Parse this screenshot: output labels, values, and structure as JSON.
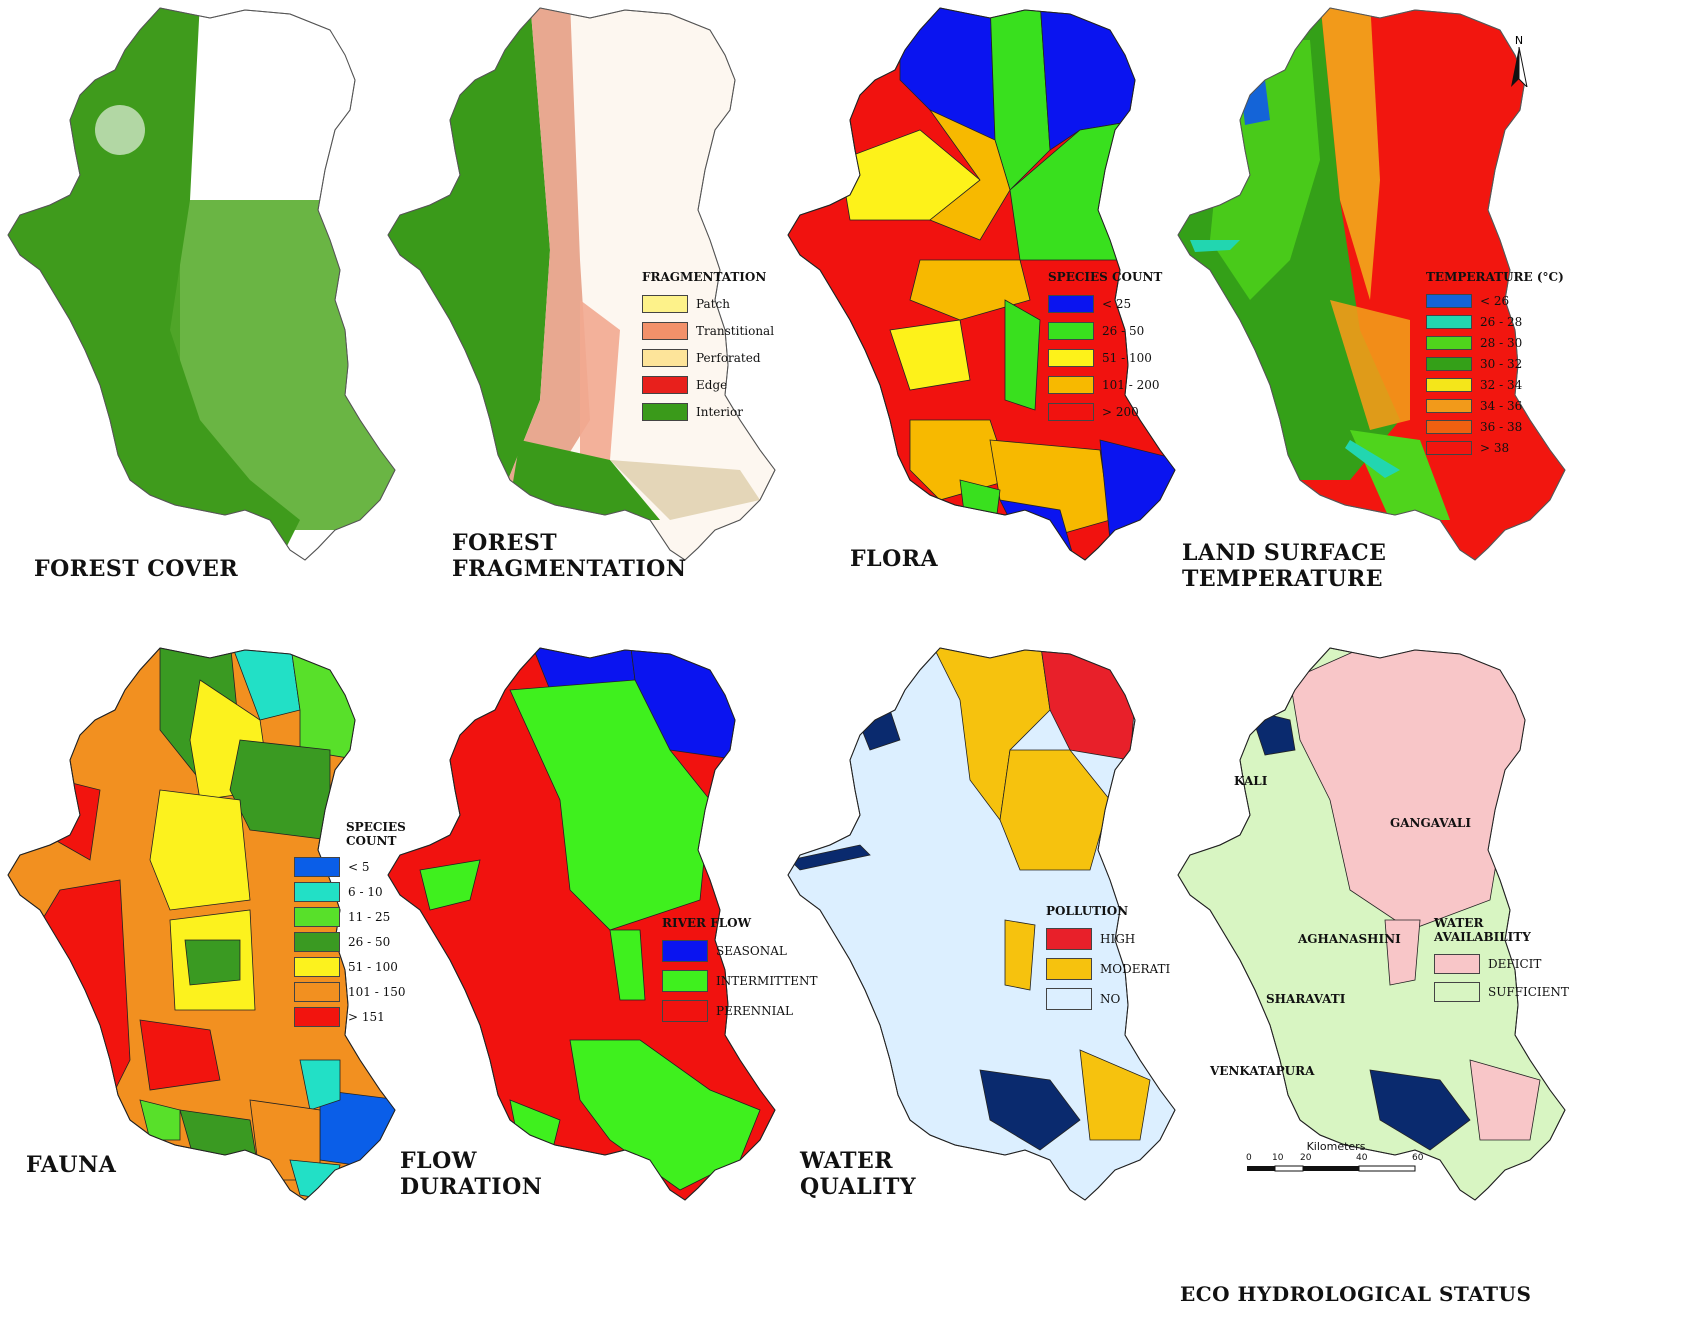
{
  "panels": {
    "forest_cover": {
      "title": "FOREST COVER",
      "colors": {
        "base": "#ffffff",
        "forest": "#3f9b1c"
      }
    },
    "forest_fragmentation": {
      "title": "FOREST\nFRAGMENTATION",
      "legend": {
        "title": "FRAGMENTATION",
        "items": [
          {
            "label": "Patch",
            "color": "#fdf28a"
          },
          {
            "label": "Transtitional",
            "color": "#f2916a"
          },
          {
            "label": "Perforated",
            "color": "#fde49a"
          },
          {
            "label": "Edge",
            "color": "#e8201c"
          },
          {
            "label": "Interior",
            "color": "#3a9a1a"
          }
        ]
      }
    },
    "flora": {
      "title": "FLORA",
      "legend": {
        "title": "SPECIES COUNT",
        "items": [
          {
            "label": "< 25",
            "color": "#0a14f0"
          },
          {
            "label": "26 - 50",
            "color": "#39e01e"
          },
          {
            "label": "51 - 100",
            "color": "#fdf21a"
          },
          {
            "label": "101 - 200",
            "color": "#f7b900"
          },
          {
            "label": "> 200",
            "color": "#f1120f"
          }
        ]
      }
    },
    "land_surface_temperature": {
      "title": "LAND SURFACE\nTEMPERATURE",
      "north": "N",
      "legend": {
        "title": "TEMPERATURE (°C)",
        "items": [
          {
            "label": "< 26",
            "color": "#1464d8"
          },
          {
            "label": "26 - 28",
            "color": "#22d6b0"
          },
          {
            "label": "28 - 30",
            "color": "#4fd41c"
          },
          {
            "label": "30 - 32",
            "color": "#34a018"
          },
          {
            "label": "32 - 34",
            "color": "#f4e61a"
          },
          {
            "label": "34 - 36",
            "color": "#f29a1a"
          },
          {
            "label": "36 - 38",
            "color": "#f06010"
          },
          {
            "label": "> 38",
            "color": "#f2160f"
          }
        ]
      }
    },
    "fauna": {
      "title": "FAUNA",
      "legend": {
        "title": "SPECIES\nCOUNT",
        "items": [
          {
            "label": "< 5",
            "color": "#0a5ee8"
          },
          {
            "label": "6 - 10",
            "color": "#22e0c6"
          },
          {
            "label": "11 - 25",
            "color": "#58e02a"
          },
          {
            "label": "26 - 50",
            "color": "#3a9a22"
          },
          {
            "label": "51 - 100",
            "color": "#fcf21e"
          },
          {
            "label": "101 - 150",
            "color": "#f29020"
          },
          {
            "label": "> 151",
            "color": "#f2140e"
          }
        ]
      }
    },
    "flow_duration": {
      "title": "FLOW\nDURATION",
      "legend": {
        "title": "RIVER FLOW",
        "items": [
          {
            "label": "SEASONAL",
            "color": "#0a14f0"
          },
          {
            "label": "INTERMITTENT",
            "color": "#3ff01e"
          },
          {
            "label": "PERENNIAL",
            "color": "#f1120f"
          }
        ]
      }
    },
    "water_quality": {
      "title": "WATER\nQUALITY",
      "legend": {
        "title": "POLLUTION",
        "items": [
          {
            "label": "HIGH",
            "color": "#e8202a"
          },
          {
            "label": "MODERATI",
            "color": "#f6c20e"
          },
          {
            "label": "NO",
            "color": "#dcefff"
          }
        ]
      }
    },
    "eco_hydrological_status": {
      "title": "ECO HYDROLOGICAL STATUS",
      "basins": [
        "KALI",
        "GANGAVALI",
        "AGHANASHINI",
        "SHARAVATI",
        "VENKATAPURA"
      ],
      "scale": {
        "unit": "Kilometers",
        "ticks": [
          "0",
          "10",
          "20",
          "40",
          "60"
        ]
      },
      "legend": {
        "title": "WATER\nAVAILABILITY",
        "items": [
          {
            "label": "DEFICIT",
            "color": "#f8c6c8"
          },
          {
            "label": "SUFFICIENT",
            "color": "#d8f5c2"
          }
        ]
      }
    }
  }
}
